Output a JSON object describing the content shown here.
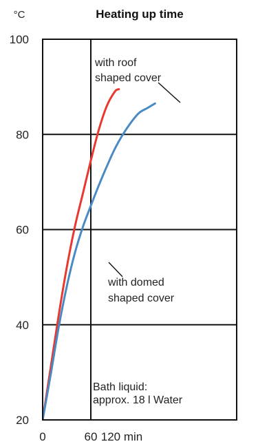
{
  "chart_data": {
    "type": "line",
    "title": "Heating up time",
    "ylabel": "°C",
    "xlabel": "",
    "x_ticks": [
      {
        "value": 0,
        "label": "0"
      },
      {
        "value": 60,
        "label": "60"
      },
      {
        "value": 120,
        "label": "120 min"
      }
    ],
    "y_ticks": [
      {
        "value": 20,
        "label": "20"
      },
      {
        "value": 40,
        "label": "40"
      },
      {
        "value": 60,
        "label": "60"
      },
      {
        "value": 80,
        "label": "80"
      },
      {
        "value": 100,
        "label": "100"
      }
    ],
    "xlim": [
      0,
      120
    ],
    "ylim": [
      20,
      100
    ],
    "grid": true,
    "series": [
      {
        "annotation": [
          "with roof",
          "shaped cover"
        ],
        "color": "#e8382f",
        "points": [
          [
            0,
            20
          ],
          [
            10,
            31
          ],
          [
            20,
            42
          ],
          [
            30,
            52
          ],
          [
            40,
            60.5
          ],
          [
            50,
            67.5
          ],
          [
            60,
            74.5
          ],
          [
            70,
            81
          ],
          [
            80,
            86
          ],
          [
            90,
            89
          ],
          [
            95,
            89.5
          ]
        ]
      },
      {
        "annotation": [
          "with domed",
          "shaped cover"
        ],
        "color": "#4a8ac4",
        "points": [
          [
            0,
            20
          ],
          [
            10,
            29.5
          ],
          [
            20,
            39.5
          ],
          [
            30,
            48
          ],
          [
            40,
            55
          ],
          [
            50,
            60.5
          ],
          [
            60,
            65
          ],
          [
            70,
            69.3
          ],
          [
            80,
            73.3
          ],
          [
            90,
            77
          ],
          [
            100,
            80
          ],
          [
            110,
            82.5
          ],
          [
            120,
            84.5
          ],
          [
            130,
            85.5
          ],
          [
            140,
            86.5
          ]
        ]
      }
    ],
    "note": [
      "Bath liquid:",
      "approx. 18 l Water"
    ]
  }
}
